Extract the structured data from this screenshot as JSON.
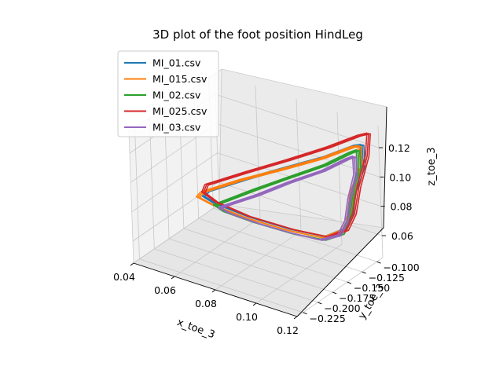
{
  "chart_data": {
    "type": "line",
    "projection": "3d",
    "title": "3D plot of the foot position HindLeg",
    "xlabel": "x_toe_3",
    "ylabel": "y_toe_3",
    "zlabel": "z_toe_3",
    "xlim": [
      0.04,
      0.12
    ],
    "ylim": [
      -0.235,
      -0.09
    ],
    "zlim": [
      0.045,
      0.135
    ],
    "xticks": [
      "0.04",
      "0.06",
      "0.08",
      "0.10",
      "0.12"
    ],
    "yticks": [
      "−0.225",
      "−0.200",
      "−0.175",
      "−0.150",
      "−0.125",
      "−0.100"
    ],
    "zticks": [
      "0.06",
      "0.08",
      "0.10",
      "0.12"
    ],
    "grid": true,
    "legend_position": "upper-left",
    "series": [
      {
        "name": "MI_01.csv",
        "color": "#1f77b4",
        "points": [
          [
            0.048,
            -0.135,
            0.07
          ],
          [
            0.063,
            -0.12,
            0.081
          ],
          [
            0.08,
            -0.112,
            0.094
          ],
          [
            0.098,
            -0.106,
            0.108
          ],
          [
            0.112,
            -0.102,
            0.121
          ],
          [
            0.116,
            -0.104,
            0.124
          ],
          [
            0.118,
            -0.11,
            0.112
          ],
          [
            0.116,
            -0.12,
            0.096
          ],
          [
            0.116,
            -0.126,
            0.082
          ],
          [
            0.114,
            -0.132,
            0.073
          ],
          [
            0.105,
            -0.132,
            0.064
          ],
          [
            0.088,
            -0.134,
            0.062
          ],
          [
            0.068,
            -0.136,
            0.062
          ],
          [
            0.052,
            -0.137,
            0.064
          ],
          [
            0.046,
            -0.136,
            0.066
          ],
          [
            0.048,
            -0.135,
            0.07
          ]
        ]
      },
      {
        "name": "MI_015.csv",
        "color": "#ff7f0e",
        "points": [
          [
            0.046,
            -0.137,
            0.069
          ],
          [
            0.061,
            -0.122,
            0.08
          ],
          [
            0.079,
            -0.113,
            0.093
          ],
          [
            0.097,
            -0.107,
            0.107
          ],
          [
            0.111,
            -0.103,
            0.12
          ],
          [
            0.115,
            -0.105,
            0.123
          ],
          [
            0.117,
            -0.111,
            0.111
          ],
          [
            0.115,
            -0.121,
            0.095
          ],
          [
            0.115,
            -0.127,
            0.081
          ],
          [
            0.113,
            -0.133,
            0.072
          ],
          [
            0.104,
            -0.133,
            0.063
          ],
          [
            0.087,
            -0.135,
            0.061
          ],
          [
            0.067,
            -0.137,
            0.061
          ],
          [
            0.051,
            -0.138,
            0.063
          ],
          [
            0.044,
            -0.138,
            0.065
          ],
          [
            0.046,
            -0.137,
            0.069
          ]
        ]
      },
      {
        "name": "MI_02.csv",
        "color": "#2ca02c",
        "points": [
          [
            0.055,
            -0.138,
            0.066
          ],
          [
            0.068,
            -0.124,
            0.077
          ],
          [
            0.083,
            -0.116,
            0.09
          ],
          [
            0.099,
            -0.11,
            0.104
          ],
          [
            0.111,
            -0.106,
            0.117
          ],
          [
            0.115,
            -0.108,
            0.121
          ],
          [
            0.117,
            -0.114,
            0.11
          ],
          [
            0.116,
            -0.123,
            0.094
          ],
          [
            0.116,
            -0.129,
            0.08
          ],
          [
            0.114,
            -0.135,
            0.071
          ],
          [
            0.105,
            -0.136,
            0.063
          ],
          [
            0.09,
            -0.138,
            0.061
          ],
          [
            0.072,
            -0.14,
            0.061
          ],
          [
            0.058,
            -0.141,
            0.062
          ],
          [
            0.053,
            -0.14,
            0.064
          ],
          [
            0.055,
            -0.138,
            0.066
          ]
        ]
      },
      {
        "name": "MI_025.csv",
        "color": "#d62728",
        "points": [
          [
            0.046,
            -0.13,
            0.072
          ],
          [
            0.062,
            -0.116,
            0.084
          ],
          [
            0.08,
            -0.107,
            0.098
          ],
          [
            0.098,
            -0.1,
            0.113
          ],
          [
            0.112,
            -0.095,
            0.126
          ],
          [
            0.117,
            -0.096,
            0.13
          ],
          [
            0.118,
            -0.103,
            0.117
          ],
          [
            0.117,
            -0.115,
            0.099
          ],
          [
            0.117,
            -0.124,
            0.083
          ],
          [
            0.115,
            -0.131,
            0.073
          ],
          [
            0.106,
            -0.131,
            0.064
          ],
          [
            0.089,
            -0.133,
            0.062
          ],
          [
            0.068,
            -0.135,
            0.062
          ],
          [
            0.052,
            -0.134,
            0.064
          ],
          [
            0.045,
            -0.132,
            0.067
          ],
          [
            0.046,
            -0.13,
            0.072
          ]
        ]
      },
      {
        "name": "MI_03.csv",
        "color": "#9467bd",
        "points": [
          [
            0.058,
            -0.14,
            0.066
          ],
          [
            0.07,
            -0.127,
            0.075
          ],
          [
            0.084,
            -0.119,
            0.088
          ],
          [
            0.099,
            -0.113,
            0.101
          ],
          [
            0.11,
            -0.109,
            0.113
          ],
          [
            0.114,
            -0.111,
            0.117
          ],
          [
            0.116,
            -0.117,
            0.107
          ],
          [
            0.115,
            -0.125,
            0.092
          ],
          [
            0.115,
            -0.131,
            0.079
          ],
          [
            0.113,
            -0.137,
            0.07
          ],
          [
            0.104,
            -0.138,
            0.063
          ],
          [
            0.09,
            -0.14,
            0.062
          ],
          [
            0.074,
            -0.142,
            0.062
          ],
          [
            0.061,
            -0.143,
            0.063
          ],
          [
            0.056,
            -0.142,
            0.064
          ],
          [
            0.058,
            -0.14,
            0.066
          ]
        ]
      }
    ]
  }
}
